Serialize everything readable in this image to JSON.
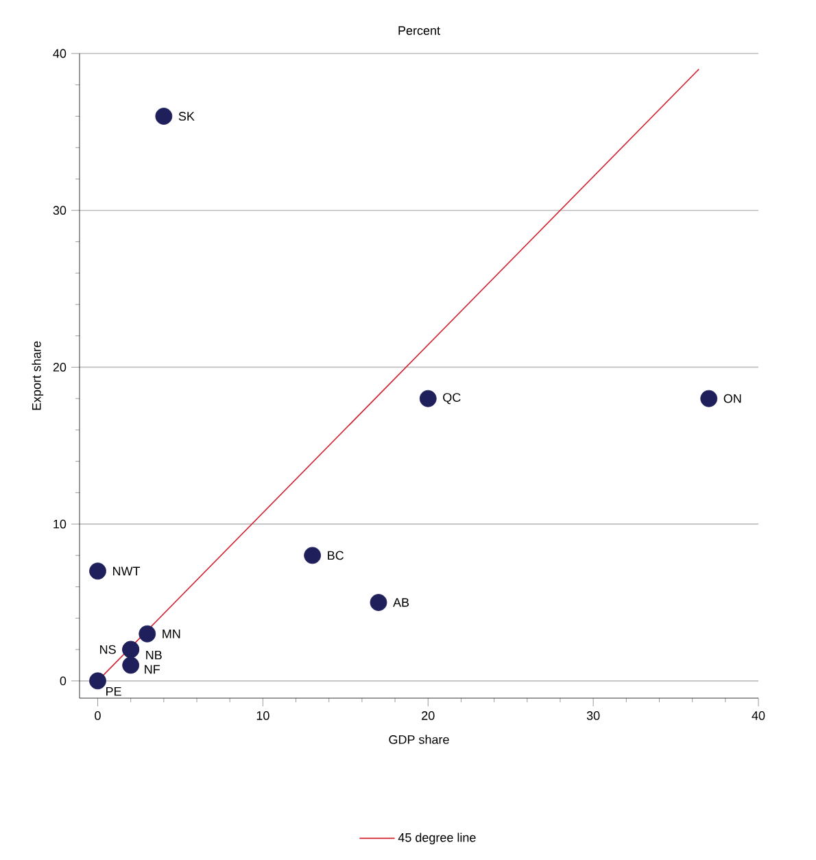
{
  "chart_data": {
    "type": "scatter",
    "title": "Percent",
    "xlabel": "GDP share",
    "ylabel": "Export share",
    "xlim": [
      -1.1,
      40
    ],
    "ylim": [
      -1.1,
      40
    ],
    "xticks": [
      0,
      10,
      20,
      30,
      40
    ],
    "yticks": [
      0,
      10,
      20,
      30,
      40
    ],
    "grid": "y",
    "legend": "bottom",
    "marker": "circle",
    "series": [
      {
        "color": "#1f1f5c",
        "x": [
          4,
          20,
          37,
          0,
          13,
          17,
          3,
          2,
          2,
          2,
          0
        ],
        "values": [
          36,
          18,
          18,
          7,
          8,
          5,
          3,
          2,
          2,
          1,
          0
        ],
        "value_labels": [
          "SK",
          "QC",
          "ON",
          "NWT",
          "BC",
          "AB",
          "MN",
          "NS",
          "NB",
          "NF",
          "PE"
        ]
      },
      {
        "type": "line",
        "name": "45 degree line",
        "color": "#d0202e",
        "marker": "none",
        "x": [
          0,
          36.4
        ],
        "values": [
          0,
          39
        ]
      }
    ]
  }
}
